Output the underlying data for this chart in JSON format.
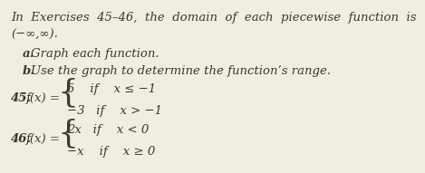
{
  "bg_color": "#f0eedf",
  "text_color": "#3a3a2a",
  "title_line1": "In  Exercises  45–46,  the  domain  of  each  piecewise  function  is",
  "title_line2": "(−∞,∞).",
  "item_a_label": "a.",
  "item_a_text": "Graph each function.",
  "item_b_label": "b.",
  "item_b_text": "Use the graph to determine the function’s range.",
  "ex45_label": "45.",
  "ex45_fx": "f(x) =",
  "ex45_top": "5    if    x ≤ −1",
  "ex45_bot": "−3   if    x > −1",
  "ex46_label": "46.",
  "ex46_fx": "f(x) =",
  "ex46_top": "2x   if    x < 0",
  "ex46_bot": "−x    if    x ≥ 0",
  "font_size_main": 9.5,
  "brace_font_size": 26
}
